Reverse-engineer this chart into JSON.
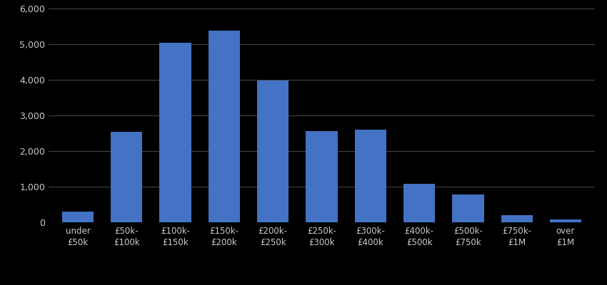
{
  "categories": [
    "under\n£50k",
    "£50k-\n£100k",
    "£100k-\n£150k",
    "£150k-\n£200k",
    "£200k-\n£250k",
    "£250k-\n£300k",
    "£300k-\n£400k",
    "£400k-\n£500k",
    "£500k-\n£750k",
    "£750k-\n£1M",
    "over\n£1M"
  ],
  "values": [
    300,
    2550,
    5050,
    5380,
    3980,
    2560,
    2600,
    1080,
    780,
    210,
    90
  ],
  "bar_color": "#4472c4",
  "background_color": "#000000",
  "text_color": "#cccccc",
  "grid_color": "#555555",
  "ylim": [
    0,
    6000
  ],
  "yticks": [
    0,
    1000,
    2000,
    3000,
    4000,
    5000,
    6000
  ]
}
